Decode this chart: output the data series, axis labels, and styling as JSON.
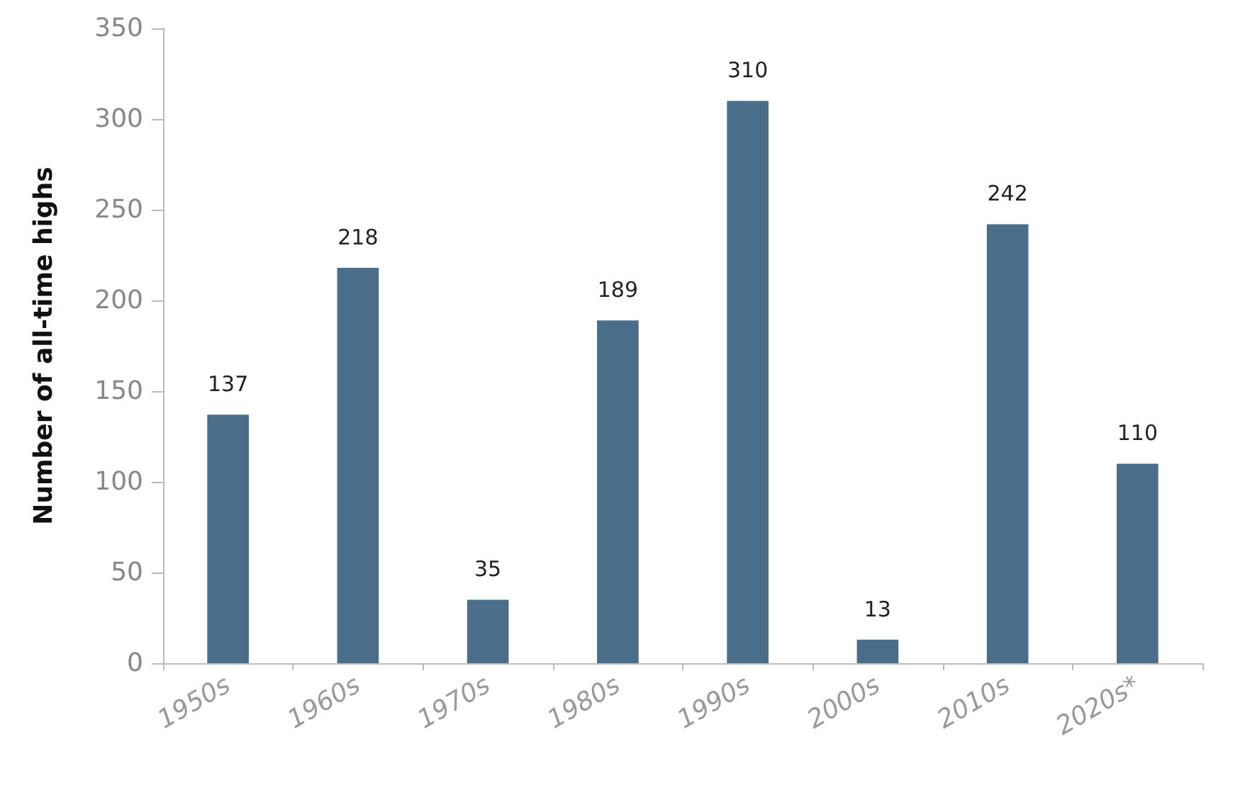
{
  "chart_data": {
    "type": "bar",
    "ylabel": "Number of all-time highs",
    "categories": [
      "1950s",
      "1960s",
      "1970s",
      "1980s",
      "1990s",
      "2000s",
      "2010s",
      "2020s*"
    ],
    "values": [
      137,
      218,
      35,
      189,
      310,
      13,
      242,
      110
    ],
    "color": "#4a6e8a",
    "ylim": [
      0,
      350
    ],
    "yticks": [
      0,
      50,
      100,
      150,
      200,
      250,
      300,
      350
    ],
    "grid": false,
    "data_labels": true
  }
}
